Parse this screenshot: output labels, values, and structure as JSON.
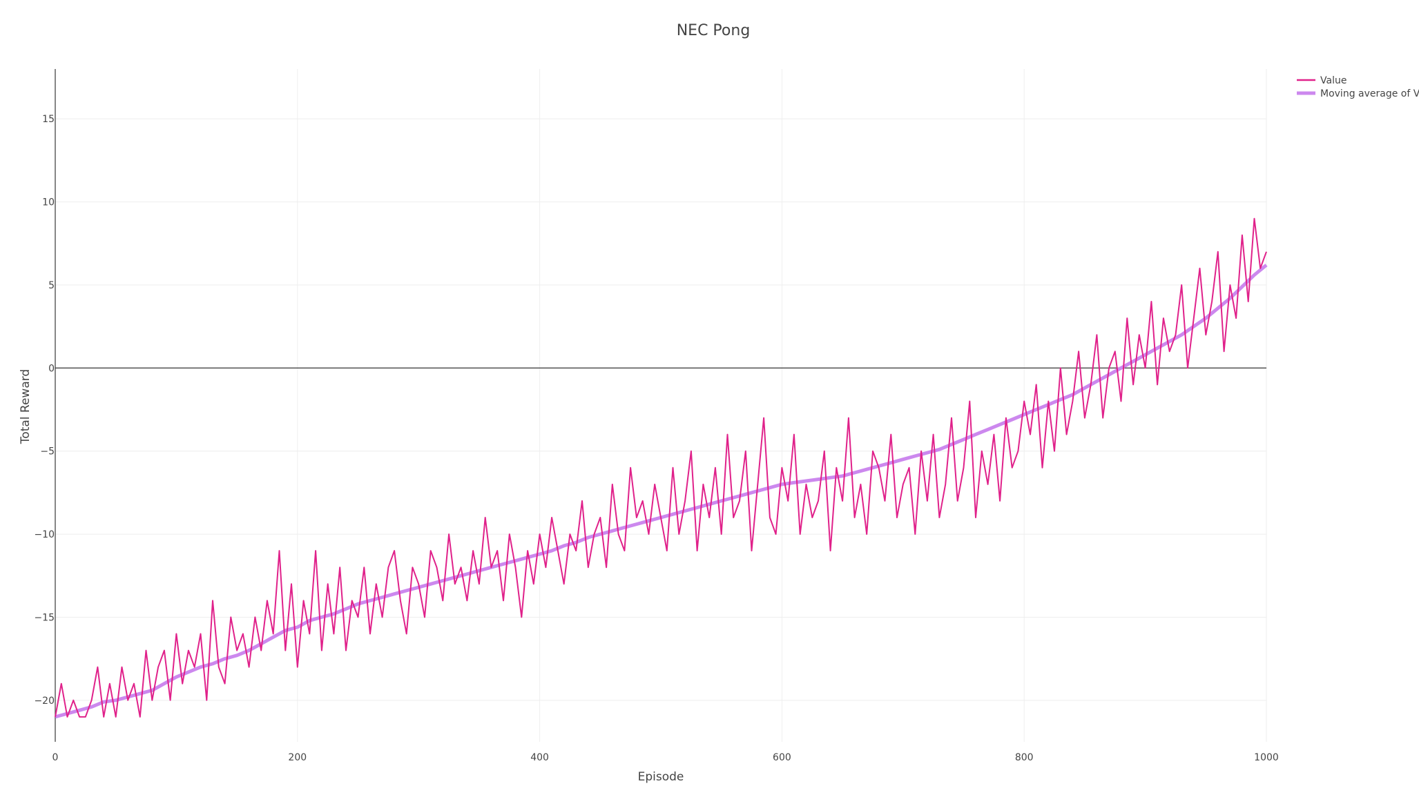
{
  "chart_data": {
    "type": "line",
    "title": "NEC Pong",
    "xlabel": "Episode",
    "ylabel": "Total Reward",
    "xlim": [
      0,
      1000
    ],
    "ylim": [
      -22.5,
      18
    ],
    "xticks": [
      0,
      200,
      400,
      600,
      800,
      1000
    ],
    "yticks": [
      -20,
      -15,
      -10,
      -5,
      0,
      5,
      10,
      15
    ],
    "xtick_labels": [
      "0",
      "200",
      "400",
      "600",
      "800",
      "1000"
    ],
    "ytick_labels": [
      "−20",
      "−15",
      "−10",
      "−5",
      "0",
      "5",
      "10",
      "15"
    ],
    "grid": true,
    "legend_position": "top-right",
    "series": [
      {
        "name": "Value",
        "color": "#e0218a",
        "x": [
          0,
          5,
          10,
          15,
          20,
          25,
          30,
          35,
          40,
          45,
          50,
          55,
          60,
          65,
          70,
          75,
          80,
          85,
          90,
          95,
          100,
          105,
          110,
          115,
          120,
          125,
          130,
          135,
          140,
          145,
          150,
          155,
          160,
          165,
          170,
          175,
          180,
          185,
          190,
          195,
          200,
          205,
          210,
          215,
          220,
          225,
          230,
          235,
          240,
          245,
          250,
          255,
          260,
          265,
          270,
          275,
          280,
          285,
          290,
          295,
          300,
          305,
          310,
          315,
          320,
          325,
          330,
          335,
          340,
          345,
          350,
          355,
          360,
          365,
          370,
          375,
          380,
          385,
          390,
          395,
          400,
          405,
          410,
          415,
          420,
          425,
          430,
          435,
          440,
          445,
          450,
          455,
          460,
          465,
          470,
          475,
          480,
          485,
          490,
          495,
          500,
          505,
          510,
          515,
          520,
          525,
          530,
          535,
          540,
          545,
          550,
          555,
          560,
          565,
          570,
          575,
          580,
          585,
          590,
          595,
          600,
          605,
          610,
          615,
          620,
          625,
          630,
          635,
          640,
          645,
          650,
          655,
          660,
          665,
          670,
          675,
          680,
          685,
          690,
          695,
          700,
          705,
          710,
          715,
          720,
          725,
          730,
          735,
          740,
          745,
          750,
          755,
          760,
          765,
          770,
          775,
          780,
          785,
          790,
          795,
          800,
          805,
          810,
          815,
          820,
          825,
          830,
          835,
          840,
          845,
          850,
          855,
          860,
          865,
          870,
          875,
          880,
          885,
          890,
          895,
          900,
          905,
          910,
          915,
          920,
          925,
          930,
          935,
          940,
          945,
          950,
          955,
          960,
          965,
          970,
          975,
          980,
          985,
          990,
          995,
          1000
        ],
        "y": [
          -21,
          -19,
          -21,
          -20,
          -21,
          -21,
          -20,
          -18,
          -21,
          -19,
          -21,
          -18,
          -20,
          -19,
          -21,
          -17,
          -20,
          -18,
          -17,
          -20,
          -16,
          -19,
          -17,
          -18,
          -16,
          -20,
          -14,
          -18,
          -19,
          -15,
          -17,
          -16,
          -18,
          -15,
          -17,
          -14,
          -16,
          -11,
          -17,
          -13,
          -18,
          -14,
          -16,
          -11,
          -17,
          -13,
          -16,
          -12,
          -17,
          -14,
          -15,
          -12,
          -16,
          -13,
          -15,
          -12,
          -11,
          -14,
          -16,
          -12,
          -13,
          -15,
          -11,
          -12,
          -14,
          -10,
          -13,
          -12,
          -14,
          -11,
          -13,
          -9,
          -12,
          -11,
          -14,
          -10,
          -12,
          -15,
          -11,
          -13,
          -10,
          -12,
          -9,
          -11,
          -13,
          -10,
          -11,
          -8,
          -12,
          -10,
          -9,
          -12,
          -7,
          -10,
          -11,
          -6,
          -9,
          -8,
          -10,
          -7,
          -9,
          -11,
          -6,
          -10,
          -8,
          -5,
          -11,
          -7,
          -9,
          -6,
          -10,
          -4,
          -9,
          -8,
          -5,
          -11,
          -7,
          -3,
          -9,
          -10,
          -6,
          -8,
          -4,
          -10,
          -7,
          -9,
          -8,
          -5,
          -11,
          -6,
          -8,
          -3,
          -9,
          -7,
          -10,
          -5,
          -6,
          -8,
          -4,
          -9,
          -7,
          -6,
          -10,
          -5,
          -8,
          -4,
          -9,
          -7,
          -3,
          -8,
          -6,
          -2,
          -9,
          -5,
          -7,
          -4,
          -8,
          -3,
          -6,
          -5,
          -2,
          -4,
          -1,
          -6,
          -2,
          -5,
          0,
          -4,
          -2,
          1,
          -3,
          -1,
          2,
          -3,
          0,
          1,
          -2,
          3,
          -1,
          2,
          0,
          4,
          -1,
          3,
          1,
          2,
          5,
          0,
          3,
          6,
          2,
          4,
          7,
          1,
          5,
          3,
          8,
          4,
          9,
          6,
          7
        ]
      },
      {
        "name": "Moving average of Value",
        "color": "#cc88ee",
        "x": [
          0,
          10,
          20,
          30,
          40,
          50,
          60,
          70,
          80,
          90,
          100,
          110,
          120,
          130,
          140,
          150,
          160,
          170,
          180,
          190,
          200,
          210,
          220,
          230,
          240,
          250,
          260,
          270,
          280,
          290,
          300,
          310,
          320,
          330,
          340,
          350,
          360,
          370,
          380,
          390,
          400,
          410,
          420,
          430,
          440,
          450,
          460,
          470,
          480,
          490,
          500,
          510,
          520,
          530,
          540,
          550,
          560,
          570,
          580,
          590,
          600,
          610,
          620,
          630,
          640,
          650,
          660,
          670,
          680,
          690,
          700,
          710,
          720,
          730,
          740,
          750,
          760,
          770,
          780,
          790,
          800,
          810,
          820,
          830,
          840,
          850,
          860,
          870,
          880,
          890,
          900,
          910,
          920,
          930,
          940,
          950,
          960,
          970,
          980,
          990,
          1000
        ],
        "y": [
          -21,
          -20.8,
          -20.6,
          -20.4,
          -20.1,
          -20,
          -19.8,
          -19.6,
          -19.4,
          -19,
          -18.6,
          -18.3,
          -18,
          -17.8,
          -17.5,
          -17.3,
          -17,
          -16.6,
          -16.2,
          -15.8,
          -15.6,
          -15.2,
          -15,
          -14.8,
          -14.5,
          -14.2,
          -14,
          -13.8,
          -13.6,
          -13.4,
          -13.2,
          -13,
          -12.8,
          -12.6,
          -12.4,
          -12.2,
          -12,
          -11.8,
          -11.6,
          -11.4,
          -11.2,
          -11,
          -10.7,
          -10.5,
          -10.2,
          -10,
          -9.8,
          -9.6,
          -9.4,
          -9.2,
          -9,
          -8.8,
          -8.6,
          -8.4,
          -8.2,
          -8,
          -7.8,
          -7.6,
          -7.4,
          -7.2,
          -7,
          -6.9,
          -6.8,
          -6.7,
          -6.6,
          -6.5,
          -6.3,
          -6.1,
          -5.9,
          -5.7,
          -5.5,
          -5.3,
          -5.1,
          -4.9,
          -4.6,
          -4.3,
          -4,
          -3.7,
          -3.4,
          -3.1,
          -2.8,
          -2.5,
          -2.2,
          -1.9,
          -1.6,
          -1.2,
          -0.8,
          -0.4,
          0,
          0.4,
          0.8,
          1.2,
          1.6,
          2,
          2.5,
          3,
          3.6,
          4.2,
          4.9,
          5.6,
          6.2
        ]
      }
    ]
  }
}
